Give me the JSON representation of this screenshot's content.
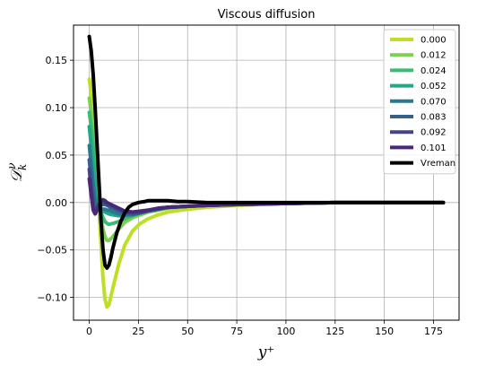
{
  "chart_data": {
    "type": "line",
    "title": "Viscous diffusion",
    "xlabel": "y⁺",
    "ylabel": "𝒟",
    "ylabel_sup": "ν",
    "ylabel_sub": "k",
    "xlim": [
      -8,
      188
    ],
    "ylim": [
      -0.124,
      0.187
    ],
    "xticks": [
      0,
      25,
      50,
      75,
      100,
      125,
      150,
      175
    ],
    "xtick_labels": [
      "0",
      "25",
      "50",
      "75",
      "100",
      "125",
      "150",
      "175"
    ],
    "yticks": [
      -0.1,
      -0.05,
      0.0,
      0.05,
      0.1,
      0.15
    ],
    "ytick_labels": [
      "−0.10",
      "−0.05",
      "0.00",
      "0.05",
      "0.10",
      "0.15"
    ],
    "grid": true,
    "legend_position": "top-right",
    "series": [
      {
        "name": "0.000",
        "color": "#bddf26",
        "x": [
          0,
          1,
          2,
          3,
          4,
          5,
          6,
          7,
          8,
          9,
          10,
          12,
          15,
          18,
          22,
          26,
          30,
          35,
          40,
          50,
          60,
          75,
          100,
          125,
          150,
          180
        ],
        "y": [
          0.13,
          0.115,
          0.09,
          0.06,
          0.025,
          -0.01,
          -0.045,
          -0.08,
          -0.102,
          -0.11,
          -0.108,
          -0.09,
          -0.065,
          -0.045,
          -0.03,
          -0.022,
          -0.017,
          -0.013,
          -0.01,
          -0.007,
          -0.005,
          -0.003,
          -0.001,
          0.0,
          0.0,
          0.0
        ]
      },
      {
        "name": "0.012",
        "color": "#7ad151",
        "x": [
          0,
          1,
          2,
          3,
          4,
          5,
          6,
          7,
          8,
          9,
          10,
          12,
          15,
          18,
          22,
          26,
          30,
          35,
          40,
          50,
          60,
          75,
          100,
          125,
          150,
          180
        ],
        "y": [
          0.11,
          0.095,
          0.07,
          0.045,
          0.02,
          0.0,
          -0.015,
          -0.028,
          -0.036,
          -0.04,
          -0.04,
          -0.036,
          -0.028,
          -0.021,
          -0.016,
          -0.013,
          -0.01,
          -0.008,
          -0.006,
          -0.004,
          -0.003,
          -0.002,
          -0.001,
          0.0,
          0.0,
          0.0
        ]
      },
      {
        "name": "0.024",
        "color": "#3bbb75",
        "x": [
          0,
          1,
          2,
          3,
          4,
          5,
          6,
          7,
          8,
          9,
          10,
          12,
          15,
          18,
          22,
          26,
          30,
          35,
          40,
          50,
          60,
          75,
          100,
          125,
          150,
          180
        ],
        "y": [
          0.095,
          0.08,
          0.06,
          0.038,
          0.016,
          0.0,
          -0.01,
          -0.016,
          -0.02,
          -0.022,
          -0.023,
          -0.022,
          -0.02,
          -0.017,
          -0.014,
          -0.011,
          -0.009,
          -0.007,
          -0.005,
          -0.004,
          -0.003,
          -0.002,
          -0.001,
          0.0,
          0.0,
          0.0
        ]
      },
      {
        "name": "0.052",
        "color": "#22a884",
        "x": [
          0,
          1,
          2,
          3,
          4,
          5,
          6,
          7,
          8,
          9,
          10,
          12,
          15,
          18,
          22,
          26,
          30,
          35,
          40,
          50,
          60,
          75,
          100,
          125,
          150,
          180
        ],
        "y": [
          0.08,
          0.06,
          0.04,
          0.022,
          0.008,
          -0.002,
          -0.006,
          -0.008,
          -0.01,
          -0.011,
          -0.012,
          -0.013,
          -0.014,
          -0.014,
          -0.013,
          -0.011,
          -0.009,
          -0.007,
          -0.005,
          -0.004,
          -0.003,
          -0.002,
          -0.001,
          0.0,
          0.0,
          0.0
        ]
      },
      {
        "name": "0.070",
        "color": "#2a788e",
        "x": [
          0,
          1,
          2,
          3,
          4,
          5,
          6,
          7,
          8,
          9,
          10,
          12,
          15,
          18,
          22,
          26,
          30,
          35,
          40,
          50,
          60,
          75,
          100,
          125,
          150,
          180
        ],
        "y": [
          0.06,
          0.04,
          0.02,
          0.005,
          -0.005,
          -0.008,
          -0.008,
          -0.007,
          -0.007,
          -0.008,
          -0.008,
          -0.01,
          -0.012,
          -0.013,
          -0.013,
          -0.011,
          -0.009,
          -0.007,
          -0.005,
          -0.004,
          -0.003,
          -0.002,
          -0.001,
          0.0,
          0.0,
          0.0
        ]
      },
      {
        "name": "0.083",
        "color": "#355f8d",
        "x": [
          0,
          1,
          2,
          3,
          4,
          5,
          6,
          7,
          8,
          9,
          10,
          12,
          15,
          18,
          22,
          26,
          30,
          35,
          40,
          50,
          60,
          75,
          100,
          125,
          150,
          180
        ],
        "y": [
          0.045,
          0.025,
          0.006,
          -0.005,
          -0.008,
          -0.006,
          -0.003,
          -0.002,
          -0.002,
          -0.003,
          -0.004,
          -0.006,
          -0.009,
          -0.011,
          -0.012,
          -0.011,
          -0.009,
          -0.007,
          -0.005,
          -0.004,
          -0.003,
          -0.002,
          -0.001,
          0.0,
          0.0,
          0.0
        ]
      },
      {
        "name": "0.092",
        "color": "#414487",
        "x": [
          0,
          1,
          2,
          3,
          4,
          5,
          6,
          7,
          8,
          9,
          10,
          12,
          15,
          18,
          22,
          26,
          30,
          35,
          40,
          50,
          60,
          75,
          100,
          125,
          150,
          180
        ],
        "y": [
          0.035,
          0.015,
          -0.003,
          -0.01,
          -0.008,
          -0.004,
          0.0,
          0.001,
          0.0,
          -0.001,
          -0.002,
          -0.004,
          -0.007,
          -0.01,
          -0.011,
          -0.01,
          -0.008,
          -0.006,
          -0.005,
          -0.004,
          -0.003,
          -0.002,
          -0.001,
          0.0,
          0.0,
          0.0
        ]
      },
      {
        "name": "0.101",
        "color": "#482878",
        "x": [
          0,
          1,
          2,
          3,
          4,
          5,
          6,
          7,
          8,
          9,
          10,
          12,
          15,
          18,
          22,
          26,
          30,
          35,
          40,
          50,
          60,
          75,
          100,
          125,
          150,
          180
        ],
        "y": [
          0.025,
          0.008,
          -0.008,
          -0.012,
          -0.008,
          -0.002,
          0.002,
          0.003,
          0.002,
          0.0,
          -0.001,
          -0.003,
          -0.006,
          -0.009,
          -0.01,
          -0.009,
          -0.008,
          -0.006,
          -0.005,
          -0.004,
          -0.003,
          -0.002,
          -0.001,
          0.0,
          0.0,
          0.0
        ]
      },
      {
        "name": "Vreman",
        "color": "#000000",
        "x": [
          0,
          1,
          2,
          3,
          4,
          5,
          6,
          7,
          8,
          9,
          10,
          11,
          12,
          14,
          16,
          18,
          20,
          22,
          25,
          28,
          30,
          33,
          36,
          40,
          45,
          50,
          60,
          75,
          100,
          125,
          150,
          180
        ],
        "y": [
          0.175,
          0.16,
          0.135,
          0.1,
          0.06,
          0.02,
          -0.02,
          -0.05,
          -0.066,
          -0.069,
          -0.066,
          -0.058,
          -0.048,
          -0.032,
          -0.02,
          -0.011,
          -0.005,
          -0.002,
          0.0,
          0.001,
          0.002,
          0.002,
          0.002,
          0.002,
          0.001,
          0.001,
          0.0,
          0.0,
          0.0,
          0.0,
          0.0,
          0.0
        ]
      }
    ]
  }
}
